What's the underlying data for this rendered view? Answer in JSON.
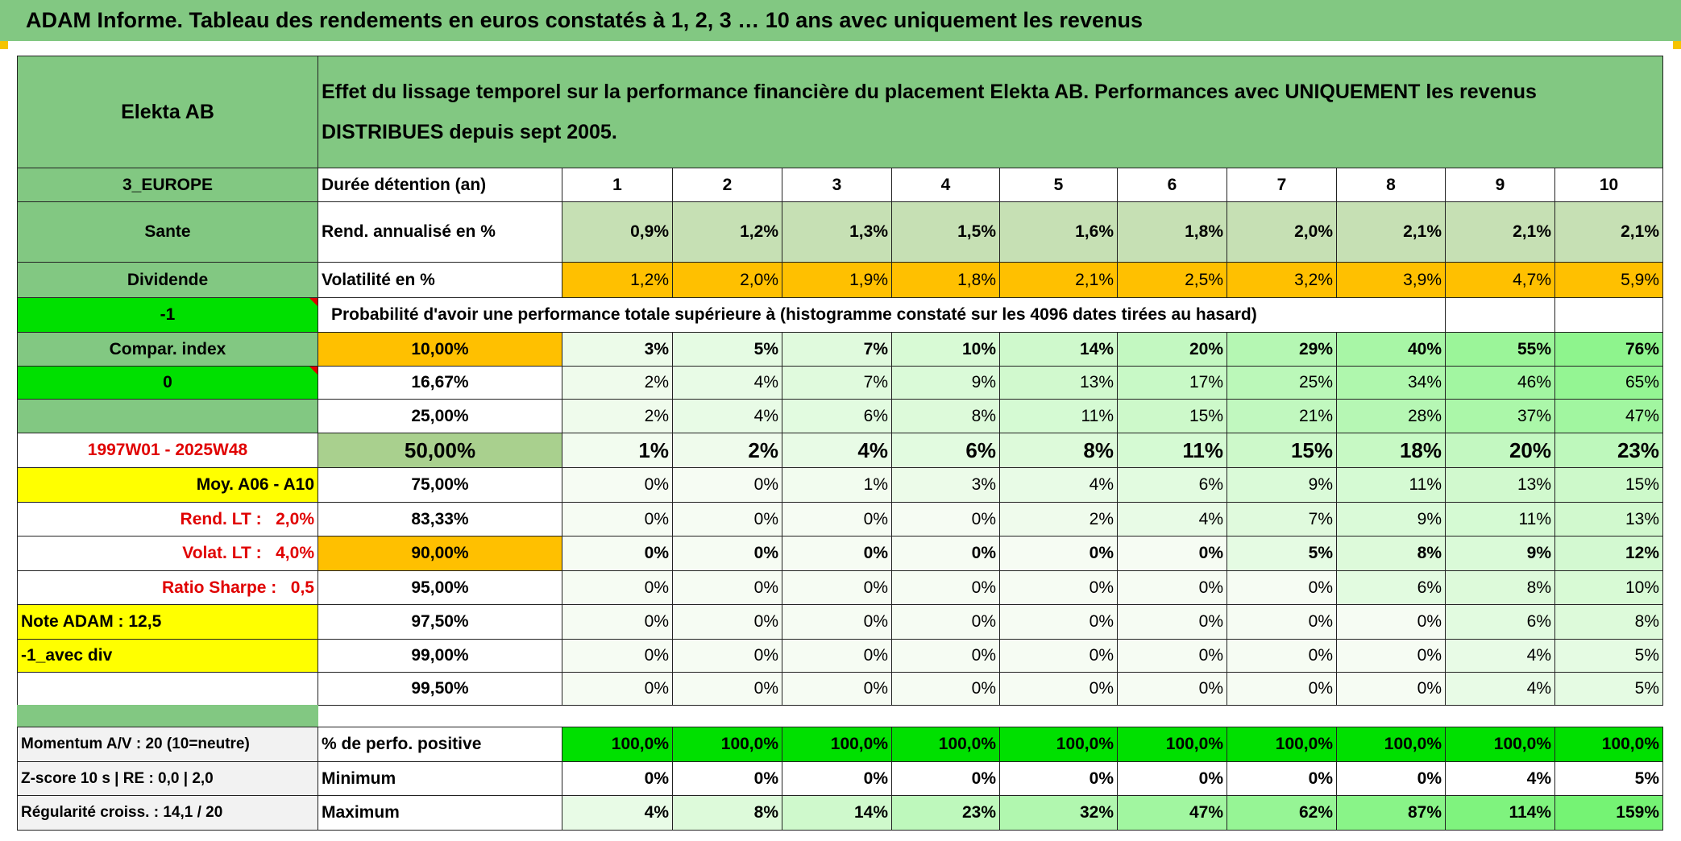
{
  "title": "ADAM Informe. Tableau des rendements en euros constatés à 1, 2, 3 … 10 ans avec uniquement les revenus",
  "header": {
    "name": "Elekta AB",
    "description": "Effet du lissage temporel sur la performance financière du placement Elekta AB. Performances avec UNIQUEMENT les revenus DISTRIBUES depuis sept 2005."
  },
  "info_rows": [
    {
      "left": "3_EUROPE",
      "label": "Durée détention (an)",
      "cells": [
        "1",
        "2",
        "3",
        "4",
        "5",
        "6",
        "7",
        "8",
        "9",
        "10"
      ]
    },
    {
      "left": "Sante",
      "label": "Rend. annualisé en %",
      "cells": [
        "0,9%",
        "1,2%",
        "1,3%",
        "1,5%",
        "1,6%",
        "1,8%",
        "2,0%",
        "2,1%",
        "2,1%",
        "2,1%"
      ]
    },
    {
      "left": "Dividende",
      "label": "Volatilité en %",
      "cells": [
        "1,2%",
        "2,0%",
        "1,9%",
        "1,8%",
        "2,1%",
        "2,5%",
        "3,2%",
        "3,9%",
        "4,7%",
        "5,9%"
      ]
    }
  ],
  "probability": {
    "left": "-1",
    "caption": "Probabilité d'avoir une performance totale supérieure à (histogramme constaté sur les 4096 dates tirées au hasard)"
  },
  "threshold_rows": [
    {
      "left": "Compar. index",
      "threshold": "10,00%",
      "cells": [
        "3%",
        "5%",
        "7%",
        "10%",
        "14%",
        "20%",
        "29%",
        "40%",
        "55%",
        "76%"
      ]
    },
    {
      "left": "0",
      "threshold": "16,67%",
      "cells": [
        "2%",
        "4%",
        "7%",
        "9%",
        "13%",
        "17%",
        "25%",
        "34%",
        "46%",
        "65%"
      ]
    },
    {
      "threshold": "25,00%",
      "cells": [
        "2%",
        "4%",
        "6%",
        "8%",
        "11%",
        "15%",
        "21%",
        "28%",
        "37%",
        "47%"
      ]
    },
    {
      "left": "1997W01 - 2025W48",
      "threshold": "50,00%",
      "cells": [
        "1%",
        "2%",
        "4%",
        "6%",
        "8%",
        "11%",
        "15%",
        "18%",
        "20%",
        "23%"
      ]
    },
    {
      "left": "Moy. A06 - A10",
      "threshold": "75,00%",
      "cells": [
        "0%",
        "0%",
        "1%",
        "3%",
        "4%",
        "6%",
        "9%",
        "11%",
        "13%",
        "15%"
      ]
    },
    {
      "left": "Rend. LT :   2,0%",
      "threshold": "83,33%",
      "cells": [
        "0%",
        "0%",
        "0%",
        "0%",
        "2%",
        "4%",
        "7%",
        "9%",
        "11%",
        "13%"
      ]
    },
    {
      "left": "Volat. LT :   4,0%",
      "threshold": "90,00%",
      "cells": [
        "0%",
        "0%",
        "0%",
        "0%",
        "0%",
        "0%",
        "5%",
        "8%",
        "9%",
        "12%"
      ]
    },
    {
      "left": "Ratio Sharpe :   0,5",
      "threshold": "95,00%",
      "cells": [
        "0%",
        "0%",
        "0%",
        "0%",
        "0%",
        "0%",
        "0%",
        "6%",
        "8%",
        "10%"
      ]
    },
    {
      "left": "Note ADAM : 12,5",
      "threshold": "97,50%",
      "cells": [
        "0%",
        "0%",
        "0%",
        "0%",
        "0%",
        "0%",
        "0%",
        "0%",
        "6%",
        "8%"
      ]
    },
    {
      "left": "-1_avec div",
      "threshold": "99,00%",
      "cells": [
        "0%",
        "0%",
        "0%",
        "0%",
        "0%",
        "0%",
        "0%",
        "0%",
        "4%",
        "5%"
      ]
    },
    {
      "threshold": "99,50%",
      "cells": [
        "0%",
        "0%",
        "0%",
        "0%",
        "0%",
        "0%",
        "0%",
        "0%",
        "4%",
        "5%"
      ]
    }
  ],
  "summary_rows": [
    {
      "left": "Momentum A/V : 20 (10=neutre)",
      "label": "% de perfo. positive",
      "cells": [
        "100,0%",
        "100,0%",
        "100,0%",
        "100,0%",
        "100,0%",
        "100,0%",
        "100,0%",
        "100,0%",
        "100,0%",
        "100,0%"
      ]
    },
    {
      "left": "Z-score 10 s | RE : 0,0 | 2,0",
      "label": "Minimum",
      "cells": [
        "0%",
        "0%",
        "0%",
        "0%",
        "0%",
        "0%",
        "0%",
        "0%",
        "4%",
        "5%"
      ]
    },
    {
      "left": "Régularité croiss. : 14,1 / 20",
      "label": "Maximum",
      "cells": [
        "4%",
        "8%",
        "14%",
        "23%",
        "32%",
        "47%",
        "62%",
        "87%",
        "114%",
        "159%"
      ]
    }
  ]
}
